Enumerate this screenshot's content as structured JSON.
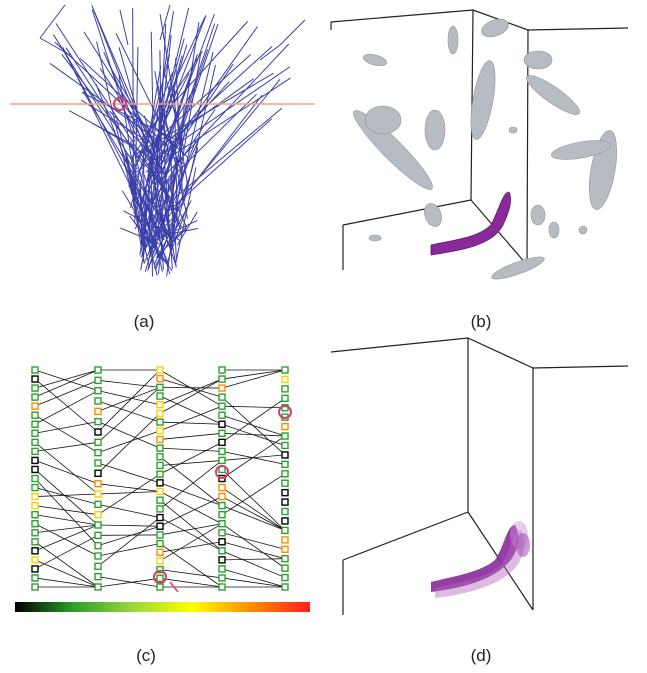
{
  "captions": {
    "a": "(a)",
    "b": "(b)",
    "c": "(c)",
    "d": "(d)"
  },
  "colors": {
    "tree_lines": "#3b3fa8",
    "horizontal_marker": "#f2a07a",
    "highlight_circle": "#d04070",
    "feature_gray": "#b6bcc2",
    "feature_purple": "#8a2a9a",
    "box_lines": "#222222"
  },
  "panel_a": {
    "description_icon": "merge-tree-icon"
  },
  "panel_c": {
    "colorbar_stops": [
      "#000000",
      "#2ca02c",
      "#9bd63a",
      "#ffff00",
      "#ff8c00",
      "#ff2020"
    ]
  }
}
